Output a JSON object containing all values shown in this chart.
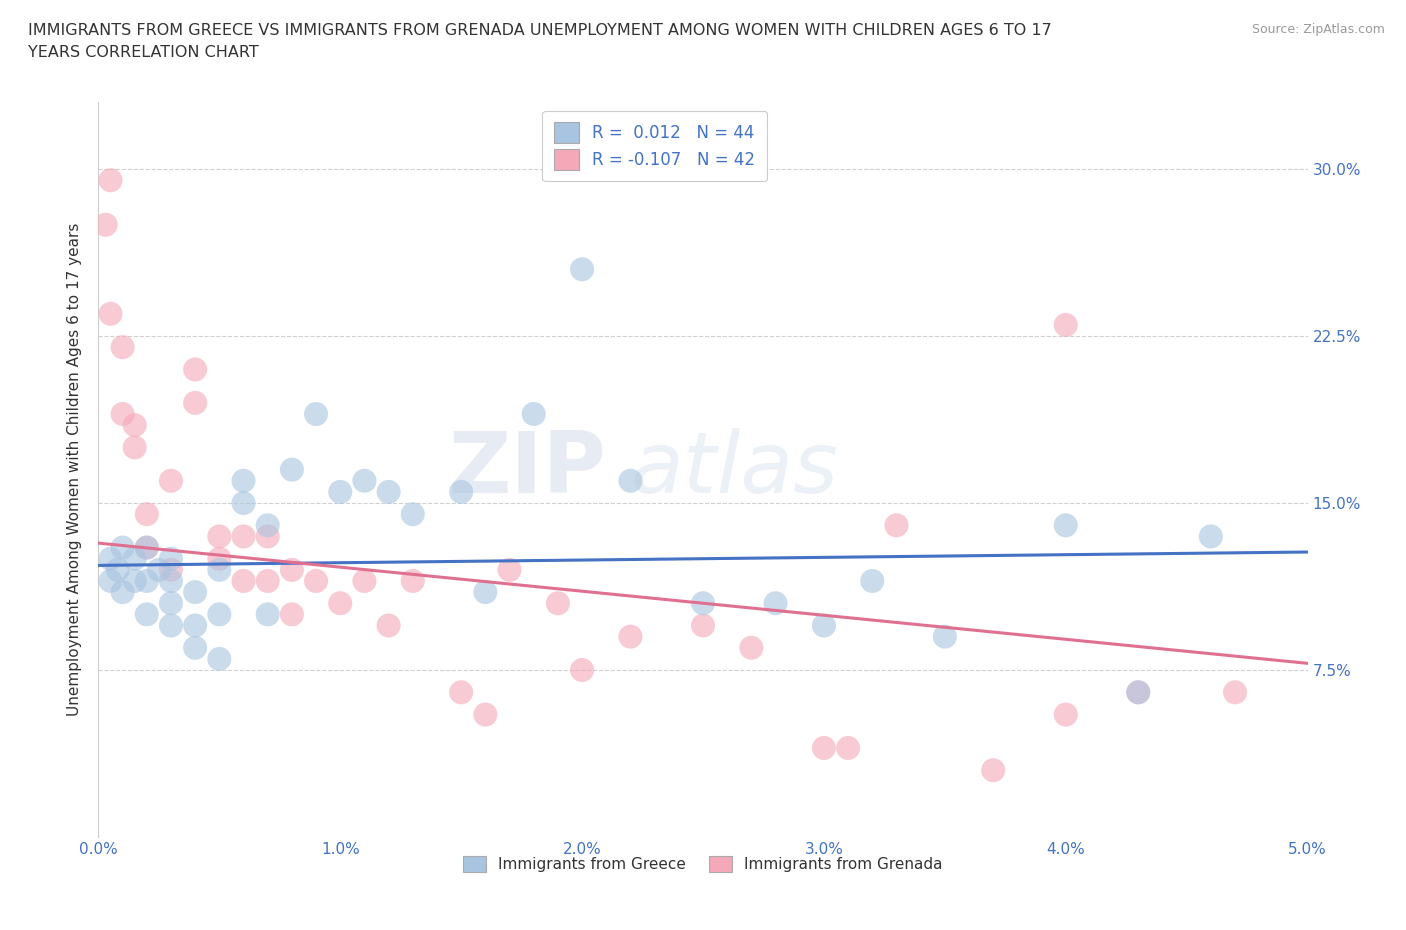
{
  "title_line1": "IMMIGRANTS FROM GREECE VS IMMIGRANTS FROM GRENADA UNEMPLOYMENT AMONG WOMEN WITH CHILDREN AGES 6 TO 17",
  "title_line2": "YEARS CORRELATION CHART",
  "source": "Source: ZipAtlas.com",
  "ylabel": "Unemployment Among Women with Children Ages 6 to 17 years",
  "xlim": [
    0.0,
    0.05
  ],
  "ylim": [
    0.0,
    0.33
  ],
  "xticks": [
    0.0,
    0.01,
    0.02,
    0.03,
    0.04,
    0.05
  ],
  "xtick_labels": [
    "0.0%",
    "1.0%",
    "2.0%",
    "3.0%",
    "4.0%",
    "5.0%"
  ],
  "yticks": [
    0.075,
    0.15,
    0.225,
    0.3
  ],
  "ytick_labels": [
    "7.5%",
    "15.0%",
    "22.5%",
    "30.0%"
  ],
  "grid_color": "#cccccc",
  "background_color": "#ffffff",
  "blue_color": "#a8c4e0",
  "pink_color": "#f4a8b8",
  "blue_line_color": "#4472c4",
  "pink_line_color": "#e07090",
  "legend_blue_label": "R =  0.012   N = 44",
  "legend_pink_label": "R = -0.107   N = 42",
  "watermark_zip": "ZIP",
  "watermark_atlas": "atlas",
  "blue_scatter_x": [
    0.0005,
    0.0005,
    0.0008,
    0.001,
    0.001,
    0.0015,
    0.0015,
    0.002,
    0.002,
    0.002,
    0.0025,
    0.003,
    0.003,
    0.003,
    0.003,
    0.004,
    0.004,
    0.004,
    0.005,
    0.005,
    0.005,
    0.006,
    0.006,
    0.007,
    0.007,
    0.008,
    0.009,
    0.01,
    0.011,
    0.012,
    0.013,
    0.015,
    0.016,
    0.018,
    0.02,
    0.022,
    0.025,
    0.028,
    0.03,
    0.032,
    0.035,
    0.04,
    0.043,
    0.046
  ],
  "blue_scatter_y": [
    0.115,
    0.125,
    0.12,
    0.11,
    0.13,
    0.115,
    0.125,
    0.1,
    0.115,
    0.13,
    0.12,
    0.095,
    0.105,
    0.115,
    0.125,
    0.085,
    0.095,
    0.11,
    0.08,
    0.1,
    0.12,
    0.15,
    0.16,
    0.1,
    0.14,
    0.165,
    0.19,
    0.155,
    0.16,
    0.155,
    0.145,
    0.155,
    0.11,
    0.19,
    0.255,
    0.16,
    0.105,
    0.105,
    0.095,
    0.115,
    0.09,
    0.14,
    0.065,
    0.135
  ],
  "pink_scatter_x": [
    0.0003,
    0.0005,
    0.0005,
    0.001,
    0.001,
    0.0015,
    0.0015,
    0.002,
    0.002,
    0.003,
    0.003,
    0.004,
    0.004,
    0.005,
    0.005,
    0.006,
    0.006,
    0.007,
    0.007,
    0.008,
    0.008,
    0.009,
    0.01,
    0.011,
    0.012,
    0.013,
    0.015,
    0.016,
    0.017,
    0.019,
    0.02,
    0.022,
    0.025,
    0.027,
    0.03,
    0.031,
    0.033,
    0.037,
    0.04,
    0.04,
    0.043,
    0.047
  ],
  "pink_scatter_y": [
    0.275,
    0.295,
    0.235,
    0.19,
    0.22,
    0.175,
    0.185,
    0.13,
    0.145,
    0.12,
    0.16,
    0.195,
    0.21,
    0.125,
    0.135,
    0.115,
    0.135,
    0.115,
    0.135,
    0.1,
    0.12,
    0.115,
    0.105,
    0.115,
    0.095,
    0.115,
    0.065,
    0.055,
    0.12,
    0.105,
    0.075,
    0.09,
    0.095,
    0.085,
    0.04,
    0.04,
    0.14,
    0.03,
    0.055,
    0.23,
    0.065,
    0.065
  ],
  "blue_trend_x": [
    0.0,
    0.05
  ],
  "blue_trend_y": [
    0.122,
    0.128
  ],
  "pink_trend_x": [
    0.0,
    0.05
  ],
  "pink_trend_y": [
    0.132,
    0.078
  ]
}
